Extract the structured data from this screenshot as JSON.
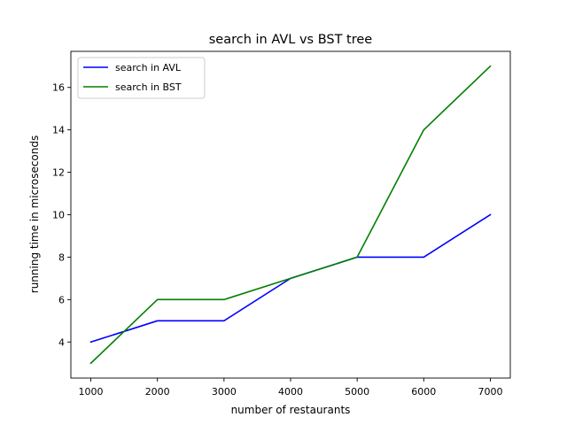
{
  "chart_data": {
    "type": "line",
    "title": "search in AVL vs BST tree",
    "xlabel": "number of restaurants",
    "ylabel": "running time in microseconds",
    "x": [
      1000,
      2000,
      3000,
      4000,
      5000,
      6000,
      7000
    ],
    "xticks": [
      1000,
      2000,
      3000,
      4000,
      5000,
      6000,
      7000
    ],
    "yticks": [
      4,
      6,
      8,
      10,
      12,
      14,
      16
    ],
    "xlim": [
      700,
      7300
    ],
    "ylim": [
      2.3,
      17.7
    ],
    "grid": false,
    "legend_position": "upper-left",
    "series": [
      {
        "name": "search in AVL",
        "color": "#0000ff",
        "values": [
          4,
          5,
          5,
          7,
          8,
          8,
          10
        ]
      },
      {
        "name": "search in BST",
        "color": "#008000",
        "values": [
          3,
          6,
          6,
          7,
          8,
          14,
          17
        ]
      }
    ]
  }
}
